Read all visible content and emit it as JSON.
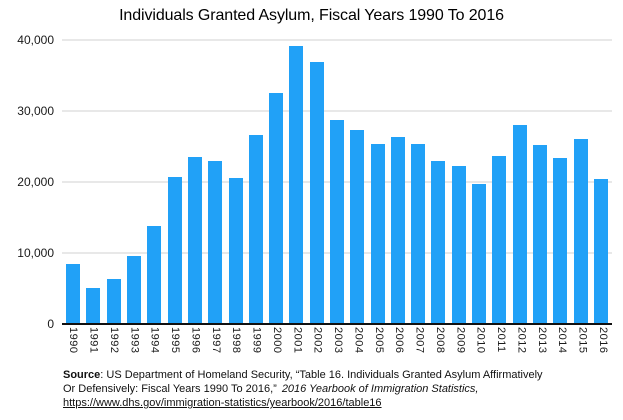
{
  "chart_data": {
    "type": "bar",
    "title": "Individuals Granted Asylum, Fiscal Years 1990 To 2016",
    "categories": [
      "1990",
      "1991",
      "1992",
      "1993",
      "1994",
      "1995",
      "1996",
      "1997",
      "1998",
      "1999",
      "2000",
      "2001",
      "2002",
      "2003",
      "2004",
      "2005",
      "2006",
      "2007",
      "2008",
      "2009",
      "2010",
      "2011",
      "2012",
      "2013",
      "2014",
      "2015",
      "2016"
    ],
    "values": [
      8472,
      5035,
      6307,
      9539,
      13802,
      20719,
      23547,
      22998,
      20524,
      26567,
      32522,
      39219,
      36956,
      28713,
      27340,
      25347,
      26337,
      25404,
      22930,
      22219,
      19766,
      23669,
      28026,
      25199,
      23374,
      26124,
      20455
    ],
    "xlabel": "",
    "ylabel": "",
    "ylim": [
      0,
      40000
    ],
    "y_ticks": [
      {
        "value": 0,
        "label": "0"
      },
      {
        "value": 10000,
        "label": "10,000"
      },
      {
        "value": 20000,
        "label": "20,000"
      },
      {
        "value": 30000,
        "label": "30,000"
      },
      {
        "value": 40000,
        "label": "40,000"
      }
    ],
    "grid": "horizontal",
    "legend": "none",
    "bar_color": "#21a1f7",
    "gridline_color": "#d2d2d2",
    "axis_line_color": "#111111"
  },
  "footer": {
    "line1_bold": "Source",
    "line1_text": ": US Department of Homeland Security, “Table 16. Individuals Granted Asylum Affirmatively",
    "line2_text": "Or Defensively: Fiscal Years 1990 To 2016,”",
    "line2_italic": "2016 Yearbook of Immigration Statistics,",
    "link": "https://www.dhs.gov/immigration-statistics/yearbook/2016/table16"
  }
}
